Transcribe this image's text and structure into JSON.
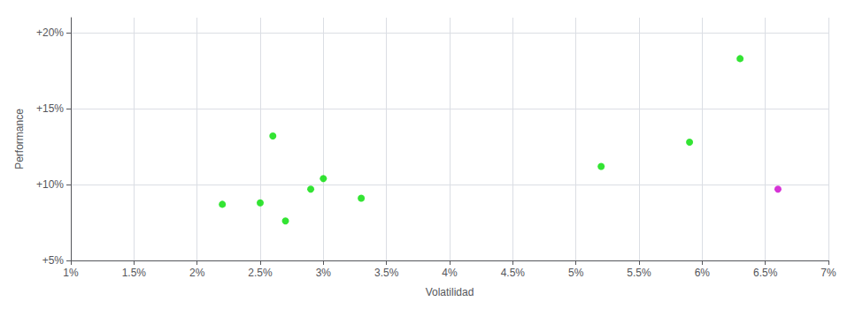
{
  "chart_data": {
    "type": "scatter",
    "xlabel": "Volatilidad",
    "ylabel": "Performance",
    "xlim": [
      0.01,
      0.07
    ],
    "ylim": [
      0.05,
      0.21
    ],
    "xticks": [
      {
        "value": 0.01,
        "label": "1%"
      },
      {
        "value": 0.015,
        "label": "1.5%"
      },
      {
        "value": 0.02,
        "label": "2%"
      },
      {
        "value": 0.025,
        "label": "2.5%"
      },
      {
        "value": 0.03,
        "label": "3%"
      },
      {
        "value": 0.035,
        "label": "3.5%"
      },
      {
        "value": 0.04,
        "label": "4%"
      },
      {
        "value": 0.045,
        "label": "4.5%"
      },
      {
        "value": 0.05,
        "label": "5%"
      },
      {
        "value": 0.055,
        "label": "5.5%"
      },
      {
        "value": 0.06,
        "label": "6%"
      },
      {
        "value": 0.065,
        "label": "6.5%"
      },
      {
        "value": 0.07,
        "label": "7%"
      }
    ],
    "yticks": [
      {
        "value": 0.05,
        "label": "+5%"
      },
      {
        "value": 0.1,
        "label": "+10%"
      },
      {
        "value": 0.15,
        "label": "+15%"
      },
      {
        "value": 0.2,
        "label": "+20%"
      }
    ],
    "grid": true,
    "series": [
      {
        "color": "#00dd00",
        "x": [
          0.022,
          0.025,
          0.026,
          0.027,
          0.029,
          0.03,
          0.033,
          0.052,
          0.059,
          0.063
        ],
        "values": [
          0.087,
          0.088,
          0.132,
          0.076,
          0.097,
          0.104,
          0.091,
          0.112,
          0.128,
          0.183
        ]
      },
      {
        "color": "#cc00cc",
        "x": [
          0.066
        ],
        "values": [
          0.097
        ]
      }
    ]
  }
}
